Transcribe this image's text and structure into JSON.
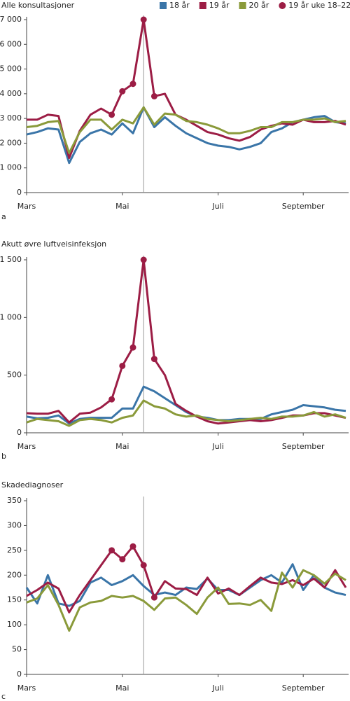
{
  "chart_data": [
    {
      "type": "line",
      "title": "Alle konsultasjoner",
      "panel_label": "a",
      "categories": [
        "Mars",
        null,
        null,
        null,
        null,
        null,
        null,
        null,
        null,
        "Mai",
        null,
        null,
        null,
        null,
        null,
        null,
        null,
        null,
        "Juli",
        null,
        null,
        null,
        null,
        null,
        null,
        null,
        "September",
        null,
        null,
        null,
        null
      ],
      "reference_line": 11,
      "ylim": [
        0,
        7000
      ],
      "yticks": [
        0,
        {
          "value": 1000,
          "label": "1 000"
        },
        {
          "value": 2000,
          "label": "2 000"
        },
        {
          "value": 3000,
          "label": "3 000"
        },
        {
          "value": 4000,
          "label": "4 000"
        },
        {
          "value": 5000,
          "label": "5 000"
        },
        {
          "value": 6000,
          "label": "6 000"
        },
        {
          "value": 7000,
          "label": "7 000"
        }
      ],
      "series": [
        {
          "name": "18 år",
          "color": "#3a75a8",
          "values": [
            2350,
            2450,
            2600,
            2550,
            1200,
            2050,
            2400,
            2550,
            2350,
            2800,
            2400,
            3450,
            2650,
            3050,
            2700,
            2400,
            2200,
            2000,
            1900,
            1850,
            1750,
            1850,
            2000,
            2450,
            2600,
            2850,
            2950,
            3050,
            3100,
            2850,
            2800
          ]
        },
        {
          "name": "19 år",
          "color": "#9c1d45",
          "values": [
            2950,
            2950,
            3150,
            3100,
            1400,
            2500,
            3150,
            3400,
            3150,
            4100,
            4400,
            7000,
            3900,
            4000,
            3150,
            2950,
            2700,
            2450,
            2350,
            2200,
            2100,
            2250,
            2550,
            2700,
            2800,
            2750,
            2950,
            2850,
            2850,
            2900,
            2750
          ]
        },
        {
          "name": "20 år",
          "color": "#8a9a3a",
          "values": [
            2650,
            2700,
            2850,
            2900,
            1600,
            2450,
            2950,
            2950,
            2550,
            2950,
            2800,
            3450,
            2750,
            3200,
            3150,
            2900,
            2850,
            2750,
            2600,
            2400,
            2400,
            2500,
            2650,
            2650,
            2850,
            2850,
            2950,
            2950,
            3000,
            2850,
            2900
          ]
        },
        {
          "name": "19 år uke 18–22",
          "color": "#9c1d45",
          "marker": "circle",
          "values": [
            null,
            null,
            null,
            null,
            null,
            null,
            null,
            null,
            3150,
            4100,
            4400,
            7000,
            3900,
            null,
            null,
            null,
            null,
            null,
            null,
            null,
            null,
            null,
            null,
            null,
            null,
            null,
            null,
            null,
            null,
            null,
            null
          ]
        }
      ]
    },
    {
      "type": "line",
      "title": "Akutt øvre luftveisinfeksjon",
      "panel_label": "b",
      "categories": [
        "Mars",
        null,
        null,
        null,
        null,
        null,
        null,
        null,
        null,
        "Mai",
        null,
        null,
        null,
        null,
        null,
        null,
        null,
        null,
        "Juli",
        null,
        null,
        null,
        null,
        null,
        null,
        null,
        "September",
        null,
        null,
        null,
        null
      ],
      "reference_line": 11,
      "ylim": [
        0,
        1500
      ],
      "yticks": [
        0,
        500,
        {
          "value": 1000,
          "label": "1 000"
        },
        {
          "value": 1500,
          "label": "1 500"
        }
      ],
      "series": [
        {
          "color": "#3a75a8",
          "values": [
            140,
            125,
            130,
            150,
            80,
            120,
            130,
            130,
            130,
            210,
            210,
            400,
            360,
            300,
            240,
            180,
            140,
            130,
            110,
            110,
            120,
            120,
            120,
            160,
            180,
            200,
            240,
            230,
            220,
            200,
            190
          ]
        },
        {
          "color": "#9c1d45",
          "values": [
            170,
            165,
            165,
            190,
            90,
            165,
            175,
            220,
            290,
            580,
            740,
            1500,
            640,
            500,
            250,
            190,
            140,
            100,
            80,
            90,
            100,
            110,
            100,
            110,
            130,
            150,
            150,
            170,
            170,
            150,
            130
          ]
        },
        {
          "color": "#8a9a3a",
          "values": [
            90,
            120,
            110,
            100,
            60,
            110,
            120,
            110,
            90,
            130,
            150,
            280,
            230,
            210,
            160,
            140,
            150,
            120,
            110,
            100,
            110,
            120,
            130,
            120,
            140,
            140,
            150,
            180,
            140,
            160,
            130
          ]
        },
        {
          "color": "#9c1d45",
          "marker": "circle",
          "values": [
            null,
            null,
            null,
            null,
            null,
            null,
            null,
            null,
            290,
            580,
            740,
            1500,
            640,
            null,
            null,
            null,
            null,
            null,
            null,
            null,
            null,
            null,
            null,
            null,
            null,
            null,
            null,
            null,
            null,
            null,
            null
          ]
        }
      ]
    },
    {
      "type": "line",
      "title": "Skadediagnoser",
      "panel_label": "c",
      "categories": [
        "Mars",
        null,
        null,
        null,
        null,
        null,
        null,
        null,
        null,
        "Mai",
        null,
        null,
        null,
        null,
        null,
        null,
        null,
        null,
        "Juli",
        null,
        null,
        null,
        null,
        null,
        null,
        null,
        "September",
        null,
        null,
        null,
        null
      ],
      "reference_line": 11,
      "ylim": [
        0,
        350
      ],
      "yticks": [
        0,
        50,
        100,
        150,
        200,
        250,
        300,
        350
      ],
      "series": [
        {
          "color": "#3a75a8",
          "values": [
            175,
            143,
            200,
            143,
            138,
            148,
            185,
            195,
            180,
            188,
            200,
            178,
            160,
            165,
            160,
            175,
            172,
            193,
            170,
            170,
            160,
            175,
            190,
            200,
            185,
            222,
            170,
            200,
            175,
            165,
            160
          ]
        },
        {
          "color": "#9c1d45",
          "values": [
            158,
            170,
            185,
            173,
            125,
            160,
            190,
            220,
            250,
            232,
            258,
            220,
            155,
            188,
            173,
            172,
            160,
            195,
            163,
            173,
            160,
            178,
            195,
            185,
            182,
            190,
            180,
            193,
            175,
            210,
            175
          ]
        },
        {
          "color": "#8a9a3a",
          "values": [
            145,
            153,
            180,
            140,
            88,
            135,
            145,
            148,
            158,
            155,
            158,
            148,
            130,
            153,
            155,
            140,
            122,
            155,
            175,
            142,
            143,
            140,
            150,
            128,
            205,
            175,
            210,
            200,
            183,
            203,
            190
          ]
        },
        {
          "color": "#9c1d45",
          "marker": "circle",
          "values": [
            null,
            null,
            null,
            null,
            null,
            null,
            null,
            null,
            250,
            232,
            258,
            220,
            155,
            null,
            null,
            null,
            null,
            null,
            null,
            null,
            null,
            null,
            null,
            null,
            null,
            null,
            null,
            null,
            null,
            null,
            null
          ]
        }
      ]
    }
  ]
}
